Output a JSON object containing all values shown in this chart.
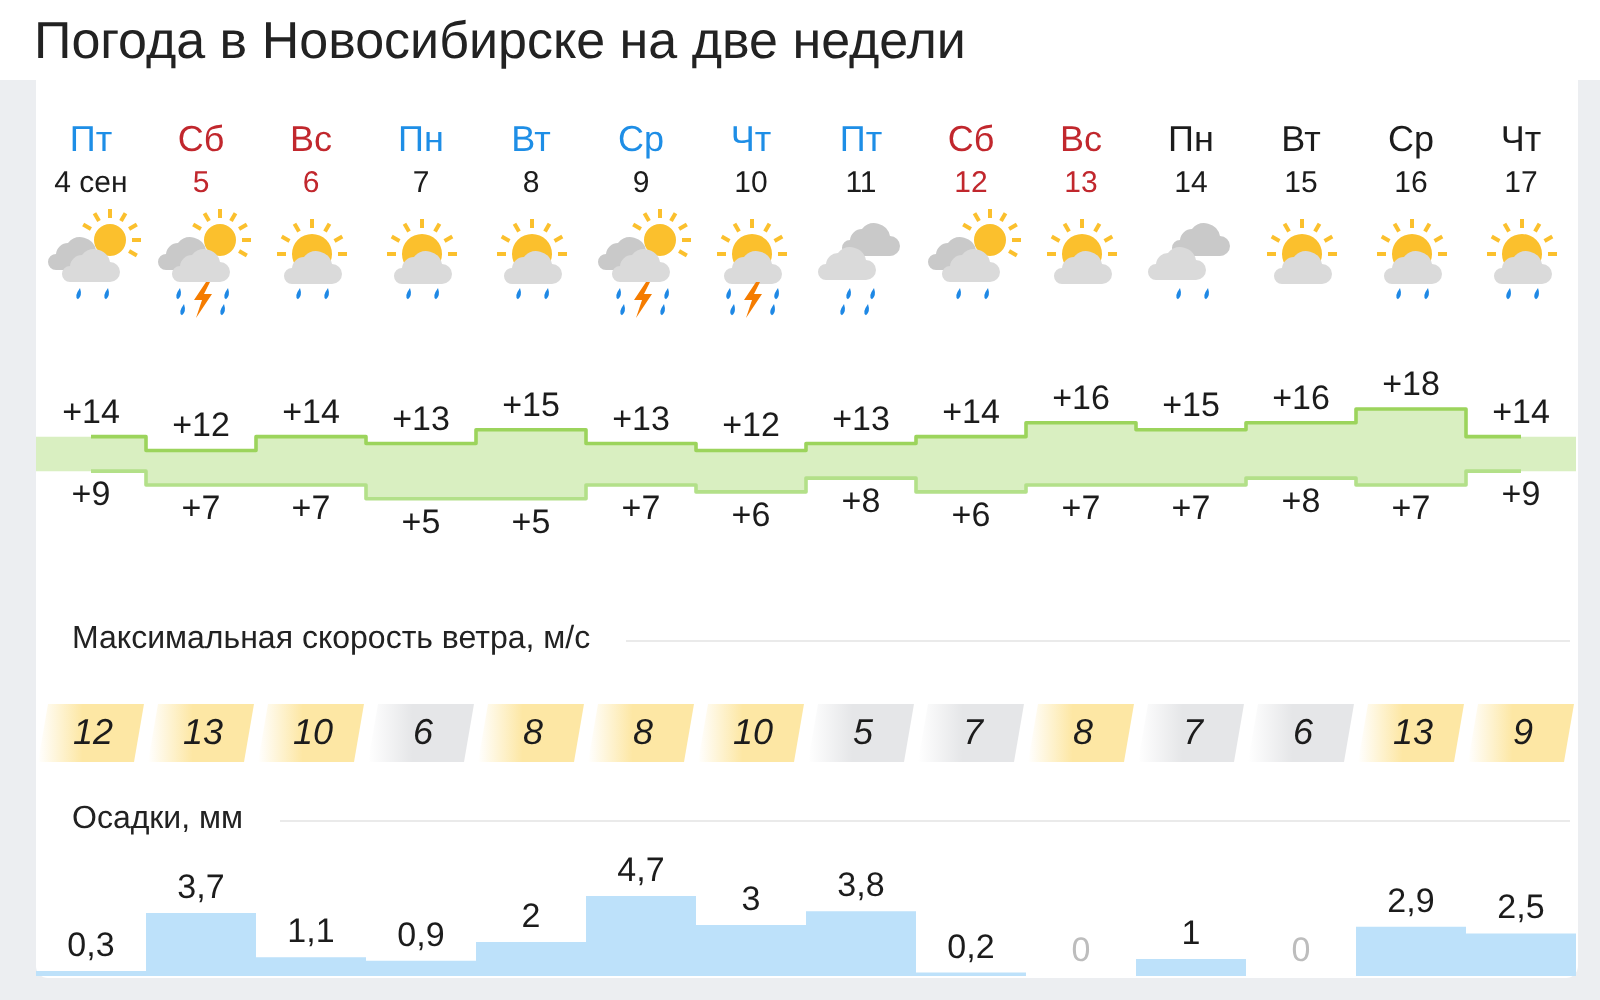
{
  "chart_data": [
    {
      "type": "step",
      "title": "Погода в Новосибирске на две недели",
      "categories": [
        "Пт\n4 сен",
        "Сб\n5",
        "Вс\n6",
        "Пн\n7",
        "Вт\n8",
        "Ср\n9",
        "Чт\n10",
        "Пт\n11",
        "Сб\n12",
        "Вс\n13",
        "Пн\n14",
        "Вт\n15",
        "Ср\n16",
        "Чт\n17"
      ],
      "tick_labels": "x",
      "series": [
        {
          "color": "#9cd45c",
          "values": [
            14,
            12,
            14,
            13,
            15,
            13,
            12,
            13,
            14,
            16,
            15,
            16,
            18,
            14
          ],
          "value_labels": [
            "+14",
            "+12",
            "+14",
            "+13",
            "+15",
            "+13",
            "+12",
            "+13",
            "+14",
            "+16",
            "+15",
            "+16",
            "+18",
            "+14"
          ]
        },
        {
          "color": "#b3e089",
          "values": [
            9,
            7,
            7,
            5,
            5,
            7,
            6,
            8,
            6,
            7,
            7,
            8,
            7,
            9
          ],
          "value_labels": [
            "+9",
            "+7",
            "+7",
            "+5",
            "+5",
            "+7",
            "+6",
            "+8",
            "+6",
            "+7",
            "+7",
            "+8",
            "+7",
            "+9"
          ]
        }
      ]
    },
    {
      "type": "other",
      "title": "Максимальная скорость ветра, м/с",
      "values": [
        12,
        13,
        10,
        6,
        8,
        8,
        10,
        5,
        7,
        8,
        7,
        6,
        13,
        9
      ],
      "colors": [
        "#fde7a4",
        "#fde7a4",
        "#fde7a4",
        "#e5e6e8",
        "#fde7a4",
        "#fde7a4",
        "#fde7a4",
        "#e5e6e8",
        "#e5e6e8",
        "#fde7a4",
        "#e5e6e8",
        "#e5e6e8",
        "#fde7a4",
        "#fde7a4"
      ],
      "data_labels": true
    },
    {
      "type": "bar",
      "title": "Осадки, мм",
      "categories": [
        null,
        null,
        null,
        null,
        null,
        null,
        null,
        null,
        null,
        null,
        null,
        null,
        null,
        null
      ],
      "tick_labels": false,
      "values": [
        0.3,
        3.7,
        1.1,
        0.9,
        2,
        4.7,
        3,
        3.8,
        0.2,
        0,
        1,
        0,
        2.9,
        2.5
      ],
      "value_labels": [
        "0,3",
        "3,7",
        "1,1",
        "0,9",
        "2",
        "4,7",
        "3",
        "3,8",
        "0,2",
        "0",
        "1",
        "0",
        "2,9",
        "2,5"
      ],
      "color": "#bde1fa"
    }
  ]
}
